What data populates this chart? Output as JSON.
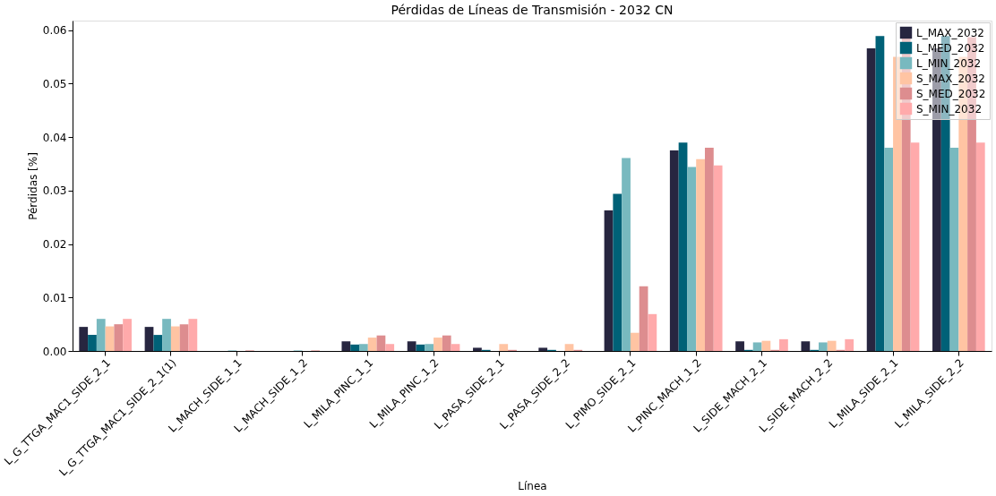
{
  "chart_data": {
    "type": "bar",
    "title": "Pérdidas de Líneas de Transmisión - 2032 CN",
    "xlabel": "Línea",
    "ylabel": "Pérdidas [%]",
    "categories": [
      "L_G_TTGA_MAC1_SIDE_2_1",
      "L_G_TTGA_MAC1_SIDE_2_1(1)",
      "L_MACH_SIDE_1_1",
      "L_MACH_SIDE_1_2",
      "L_MILA_PINC_1_1",
      "L_MILA_PINC_1_2",
      "L_PASA_SIDE_2_1",
      "L_PASA_SIDE_2_2",
      "L_PIMO_SIDE_2_1",
      "L_PINC_MACH_1_2",
      "L_SIDE_MACH_2_1",
      "L_SIDE_MACH_2_2",
      "L_MILA_SIDE_2_1",
      "L_MILA_SIDE_2_2"
    ],
    "series": [
      {
        "name": "L_MAX_2032",
        "color": "#272640",
        "values": [
          0.0045,
          0.0045,
          0,
          0,
          0.0018,
          0.0018,
          0.0006,
          0.0006,
          0.0263,
          0.0375,
          0.0018,
          0.0018,
          0.0566,
          0.0566
        ]
      },
      {
        "name": "L_MED_2032",
        "color": "#006177",
        "values": [
          0.003,
          0.003,
          0,
          0,
          0.0012,
          0.0012,
          0.0002,
          0.0002,
          0.0294,
          0.039,
          0.0002,
          0.0002,
          0.0589,
          0.0589
        ]
      },
      {
        "name": "L_MIN_2032",
        "color": "#78b9bf",
        "values": [
          0.006,
          0.006,
          0.0001,
          0.0001,
          0.0013,
          0.0013,
          0,
          0,
          0.0361,
          0.0344,
          0.0016,
          0.0016,
          0.038,
          0.038
        ]
      },
      {
        "name": "S_MAX_2032",
        "color": "#ffc4a3",
        "values": [
          0.0046,
          0.0046,
          0,
          0,
          0.0025,
          0.0025,
          0.0013,
          0.0013,
          0.0034,
          0.0359,
          0.0019,
          0.0019,
          0.055,
          0.055
        ]
      },
      {
        "name": "S_MED_2032",
        "color": "#dd8d8f",
        "values": [
          0.005,
          0.005,
          0.0001,
          0.0001,
          0.0029,
          0.0029,
          0.0002,
          0.0002,
          0.0121,
          0.038,
          0.0002,
          0.0002,
          0.0587,
          0.0587
        ]
      },
      {
        "name": "S_MIN_2032",
        "color": "#ffaaab",
        "values": [
          0.006,
          0.006,
          0,
          0,
          0.0013,
          0.0013,
          0,
          0,
          0.0069,
          0.0347,
          0.0022,
          0.0022,
          0.039,
          0.039
        ]
      }
    ],
    "ylim": [
      0,
      0.0618
    ],
    "yticks": [
      {
        "value": 0,
        "label": "0.00"
      },
      {
        "value": 0.01,
        "label": "0.01"
      },
      {
        "value": 0.02,
        "label": "0.02"
      },
      {
        "value": 0.03,
        "label": "0.03"
      },
      {
        "value": 0.04,
        "label": "0.04"
      },
      {
        "value": 0.05,
        "label": "0.05"
      },
      {
        "value": 0.06,
        "label": "0.06"
      }
    ],
    "grid": false,
    "legend": "top right"
  }
}
